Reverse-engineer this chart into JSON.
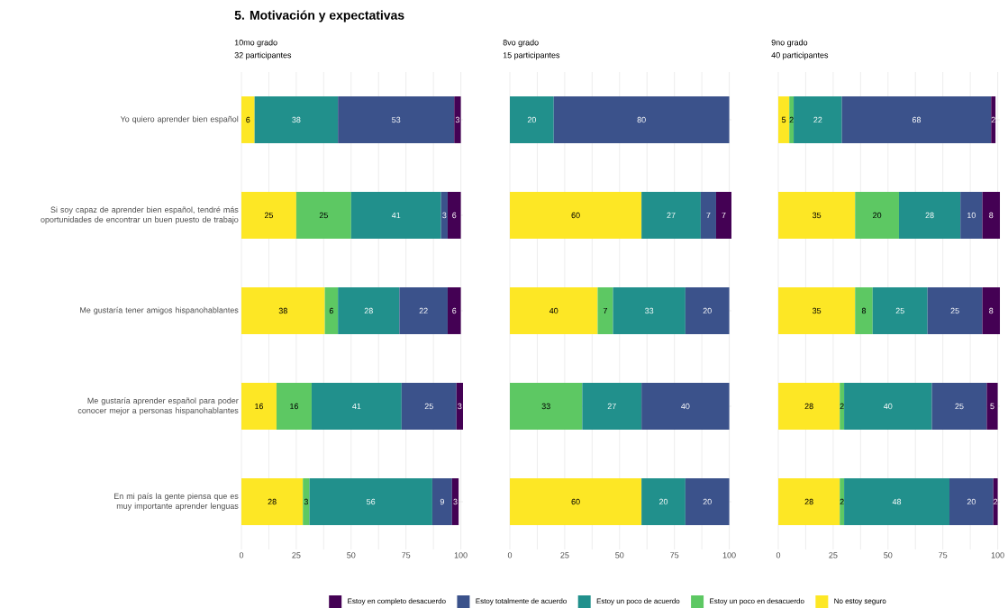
{
  "chart_data": [
    {
      "type": "bar",
      "orientation": "horizontal",
      "stacked": true,
      "data_labels": true,
      "grid": true,
      "title": "10mo grado",
      "subtitle": "32 participantes",
      "legend": "bottom",
      "annotations": [
        "5. Motivación y expectativas"
      ],
      "categories": [
        "Yo quiero aprender bien español",
        "Si soy capaz de aprender bien español, tendré más oportunidades de encontrar un buen puesto de trabajo",
        "Me gustaría tener amigos hispanohablantes",
        "Me gustaría aprender español para poder conocer mejor a personas hispanohablantes",
        "En mi país la gente piensa que es muy importante aprender lenguas"
      ],
      "xlim": [
        0,
        101
      ],
      "xticks": [
        0,
        25,
        50,
        75,
        100
      ],
      "series": [
        {
          "name": "No estoy seguro",
          "color": "#fde725",
          "values": [
            6,
            25,
            38,
            16,
            28
          ]
        },
        {
          "name": "Estoy un poco en desacuerdo",
          "color": "#5dc863",
          "values": [
            null,
            25,
            6,
            16,
            3
          ]
        },
        {
          "name": "Estoy un poco de acuerdo",
          "color": "#21908c",
          "values": [
            38,
            41,
            28,
            41,
            56
          ]
        },
        {
          "name": "Estoy totalmente de acuerdo",
          "color": "#3b528b",
          "values": [
            53,
            3,
            22,
            25,
            9
          ]
        },
        {
          "name": "Estoy en completo desacuerdo",
          "color": "#440154",
          "values": [
            3,
            6,
            6,
            3,
            3
          ]
        }
      ]
    },
    {
      "type": "bar",
      "orientation": "horizontal",
      "stacked": true,
      "data_labels": true,
      "grid": true,
      "title": "8vo grado",
      "subtitle": "15 participantes",
      "categories": [
        null,
        null,
        null,
        null,
        null
      ],
      "xlim": [
        0,
        101
      ],
      "xticks": [
        0,
        25,
        50,
        75,
        100
      ],
      "series": [
        {
          "color": "#fde725",
          "values": [
            null,
            60,
            40,
            null,
            60
          ]
        },
        {
          "color": "#5dc863",
          "values": [
            null,
            null,
            7,
            33,
            null
          ]
        },
        {
          "color": "#21908c",
          "values": [
            20,
            27,
            33,
            27,
            20
          ]
        },
        {
          "color": "#3b528b",
          "values": [
            80,
            7,
            20,
            40,
            20
          ]
        },
        {
          "color": "#440154",
          "values": [
            null,
            7,
            null,
            null,
            null
          ]
        }
      ]
    },
    {
      "type": "bar",
      "orientation": "horizontal",
      "stacked": true,
      "data_labels": true,
      "grid": true,
      "title": "9no grado",
      "subtitle": "40 participantes",
      "categories": [
        null,
        null,
        null,
        null,
        null
      ],
      "xlim": [
        0,
        101
      ],
      "xticks": [
        0,
        25,
        50,
        75,
        100
      ],
      "series": [
        {
          "color": "#fde725",
          "values": [
            5,
            35,
            35,
            28,
            28
          ]
        },
        {
          "color": "#5dc863",
          "values": [
            2,
            20,
            8,
            2,
            2
          ]
        },
        {
          "color": "#21908c",
          "values": [
            22,
            28,
            25,
            40,
            48
          ]
        },
        {
          "color": "#3b528b",
          "values": [
            68,
            10,
            25,
            25,
            20
          ]
        },
        {
          "color": "#440154",
          "values": [
            2,
            8,
            8,
            5,
            2
          ]
        }
      ]
    }
  ]
}
